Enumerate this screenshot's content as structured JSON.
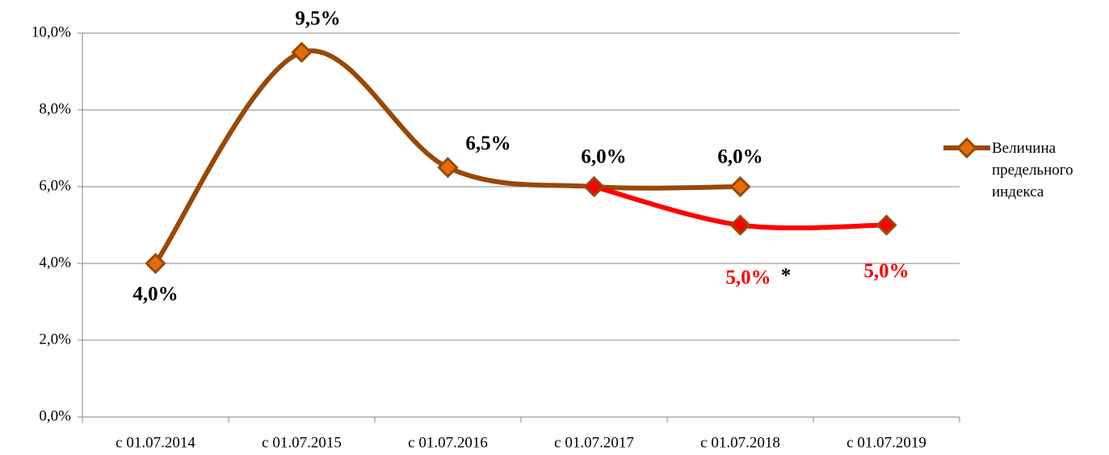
{
  "chart_data": {
    "type": "line",
    "categories": [
      "с 01.07.2014",
      "с 01.07.2015",
      "с 01.07.2016",
      "с 01.07.2017",
      "с 01.07.2018",
      "с 01.07.2019"
    ],
    "series": [
      {
        "name": "Величина предельного индекса",
        "color": "#984807",
        "marker_color": "#e46c0a",
        "values": [
          4,
          9.5,
          6.5,
          6,
          6,
          null
        ],
        "value_labels": [
          "4,0%",
          "9,5%",
          "6,5%",
          "6,0%",
          "6,0%",
          null
        ],
        "label_color": "#000000"
      },
      {
        "color": "#ff0000",
        "marker_color": "#ff0000",
        "values": [
          null,
          null,
          null,
          6,
          5,
          5
        ],
        "value_labels": [
          null,
          null,
          null,
          null,
          "5,0%",
          "5,0%"
        ],
        "label_color": "#ff0000"
      }
    ],
    "annotations": [
      "*"
    ],
    "ylim": [
      0,
      10
    ],
    "yticks": [
      {
        "value": 0,
        "label": "0,0%"
      },
      {
        "value": 2,
        "label": "2,0%"
      },
      {
        "value": 4,
        "label": "4,0%"
      },
      {
        "value": 6,
        "label": "6,0%"
      },
      {
        "value": 8,
        "label": "8,0%"
      },
      {
        "value": 10,
        "label": "10,0%"
      }
    ],
    "grid": true,
    "smooth": true,
    "legend": "right"
  }
}
